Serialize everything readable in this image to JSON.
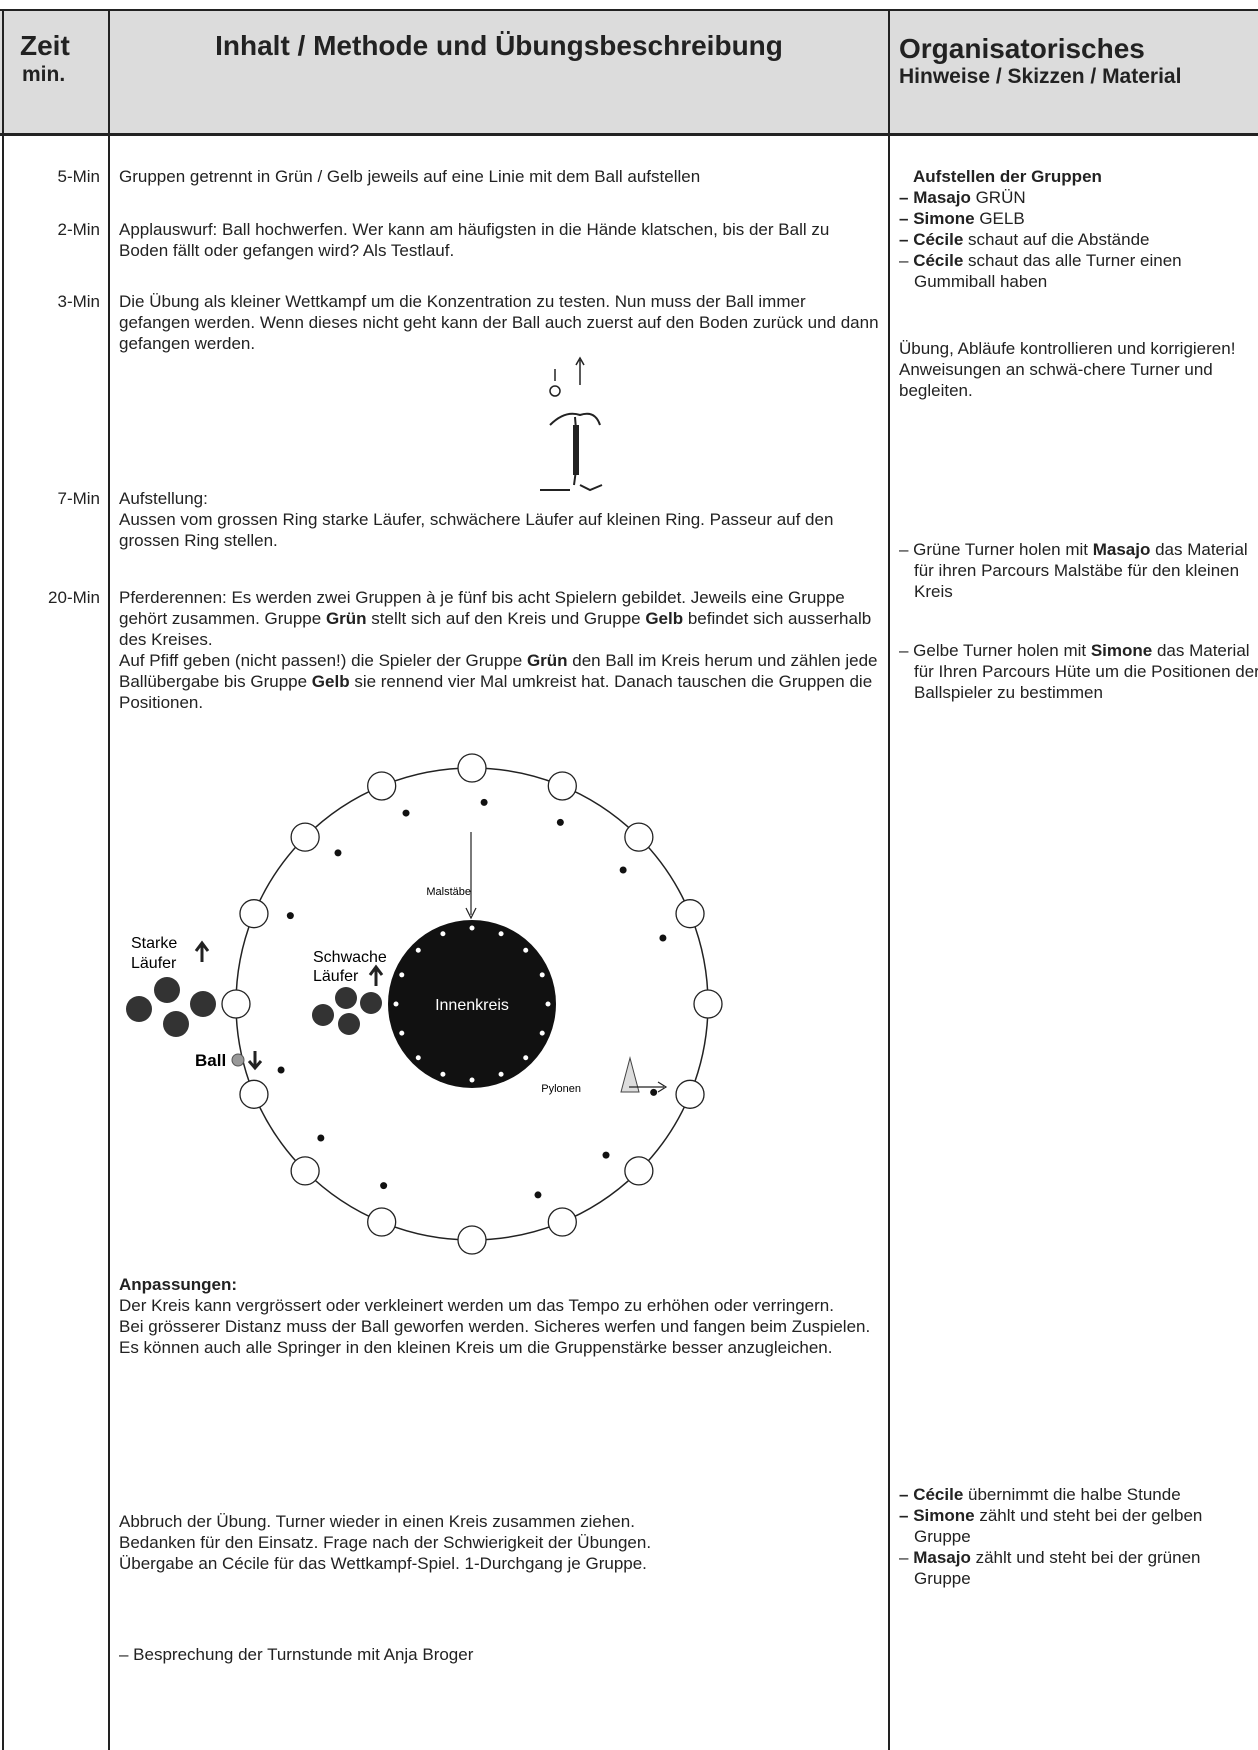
{
  "header": {
    "zeit": "Zeit",
    "zeit_unit": "min.",
    "inhalt": "Inhalt / Methode und Übungsbeschreibung",
    "org_title": "Organisatorisches",
    "org_subtitle": "Hinweise / Skizzen / Material"
  },
  "times": [
    "5-Min",
    "2-Min",
    "3-Min",
    "7-Min",
    "20-Min"
  ],
  "content": {
    "aufstellen": "Gruppen getrennt in Grün / Gelb jeweils auf eine Linie mit dem Ball aufstellen",
    "applauswurf": "Applauswurf: Ball hochwerfen. Wer kann am häufigsten in die Hände klatschen, bis der Ball zu Boden fällt oder gefangen wird? Als Testlauf.",
    "wettkampf": "Die Übung als kleiner Wettkampf um die Konzentration zu testen. Nun muss der Ball immer gefangen werden. Wenn dieses nicht geht kann der Ball auch zuerst auf den Boden zurück und dann gefangen werden.",
    "aufstellung": {
      "title": "Aufstellung:",
      "text": "Aussen vom grossen Ring starke Läufer, schwächere Läufer auf kleinen Ring. Passeur auf den grossen Ring stellen."
    },
    "pferderennen": {
      "p1": [
        "Pferderennen: Es werden zwei Gruppen à je fünf bis acht Spielern gebildet. Jeweils eine Gruppe gehört zusammen. Gruppe ",
        "Grün",
        " stellt sich auf den Kreis und Gruppe ",
        "Gelb",
        " befindet sich ausserhalb des Kreises."
      ],
      "p2": [
        "Auf Pfiff geben (nicht passen!) die Spieler der Gruppe ",
        "Grün",
        " den Ball im Kreis herum und zählen jede Ballübergabe bis Gruppe ",
        "Gelb",
        " sie rennend vier Mal umkreist hat. Danach tauschen die Gruppen die Positionen."
      ]
    },
    "diagram": {
      "malstaebe": "Malstäbe",
      "starke": [
        "Starke",
        "Läufer"
      ],
      "schwache": [
        "Schwache",
        "Läufer"
      ],
      "innenkreis": "Innenkreis",
      "ball": "Ball",
      "pylonen": "Pylonen"
    },
    "anpassungen": {
      "title": "Anpassungen:",
      "lines": [
        "Der Kreis kann vergrössert oder verkleinert werden um das  Tempo zu erhöhen oder verringern.",
        "Bei grösserer Distanz muss der Ball geworfen werden. Sicheres werfen und fangen beim Zuspielen.",
        "Es können auch alle Springer in den kleinen Kreis um die Gruppenstärke besser anzugleichen."
      ]
    },
    "abbruch": [
      "Abbruch der Übung. Turner wieder in einen Kreis zusammen ziehen.",
      "Bedanken für den Einsatz. Frage nach der Schwierigkeit der Übungen.",
      "Übergabe an Cécile für das Wettkampf-Spiel. 1-Durchgang je Gruppe."
    ],
    "besprechung": "– Besprechung der Turnstunde mit Anja Broger"
  },
  "organisation": {
    "aufstellen": {
      "title": "Aufstellen der Gruppen",
      "items": [
        {
          "dash": "–",
          "name": "Masajo",
          "text": " GRÜN"
        },
        {
          "dash": "–",
          "name": "Simone",
          "text": " GELB"
        },
        {
          "dash": "–",
          "name": "Cécile",
          "text": " schaut auf die Abstände"
        },
        {
          "dash": "–",
          "name": "Cécile",
          "text": " schaut das alle Turner einen Gummiball haben"
        }
      ]
    },
    "uebung": "Übung, Abläufe kontrollieren und korrigieren! Anweisungen an schwä-chere Turner und begleiten.",
    "gruene": [
      "– Grüne Turner holen mit ",
      "Masajo",
      " das Material für ihren Parcours Malstäbe für den kleinen Kreis"
    ],
    "gelbe": [
      "– Gelbe Turner holen mit ",
      "Simone",
      " das Material für Ihren Parcours Hüte um die Positionen der Ballspieler zu bestimmen"
    ],
    "zaehlen": [
      {
        "dash": "–",
        "name": "Cécile",
        "text": " übernimmt die halbe Stunde"
      },
      {
        "dash": "–",
        "name": "Simone",
        "text": " zählt und steht bei der gelben Gruppe"
      },
      {
        "dash": "–",
        "name": "Masajo",
        "text": " zählt und steht bei der grünen Gruppe"
      }
    ]
  }
}
